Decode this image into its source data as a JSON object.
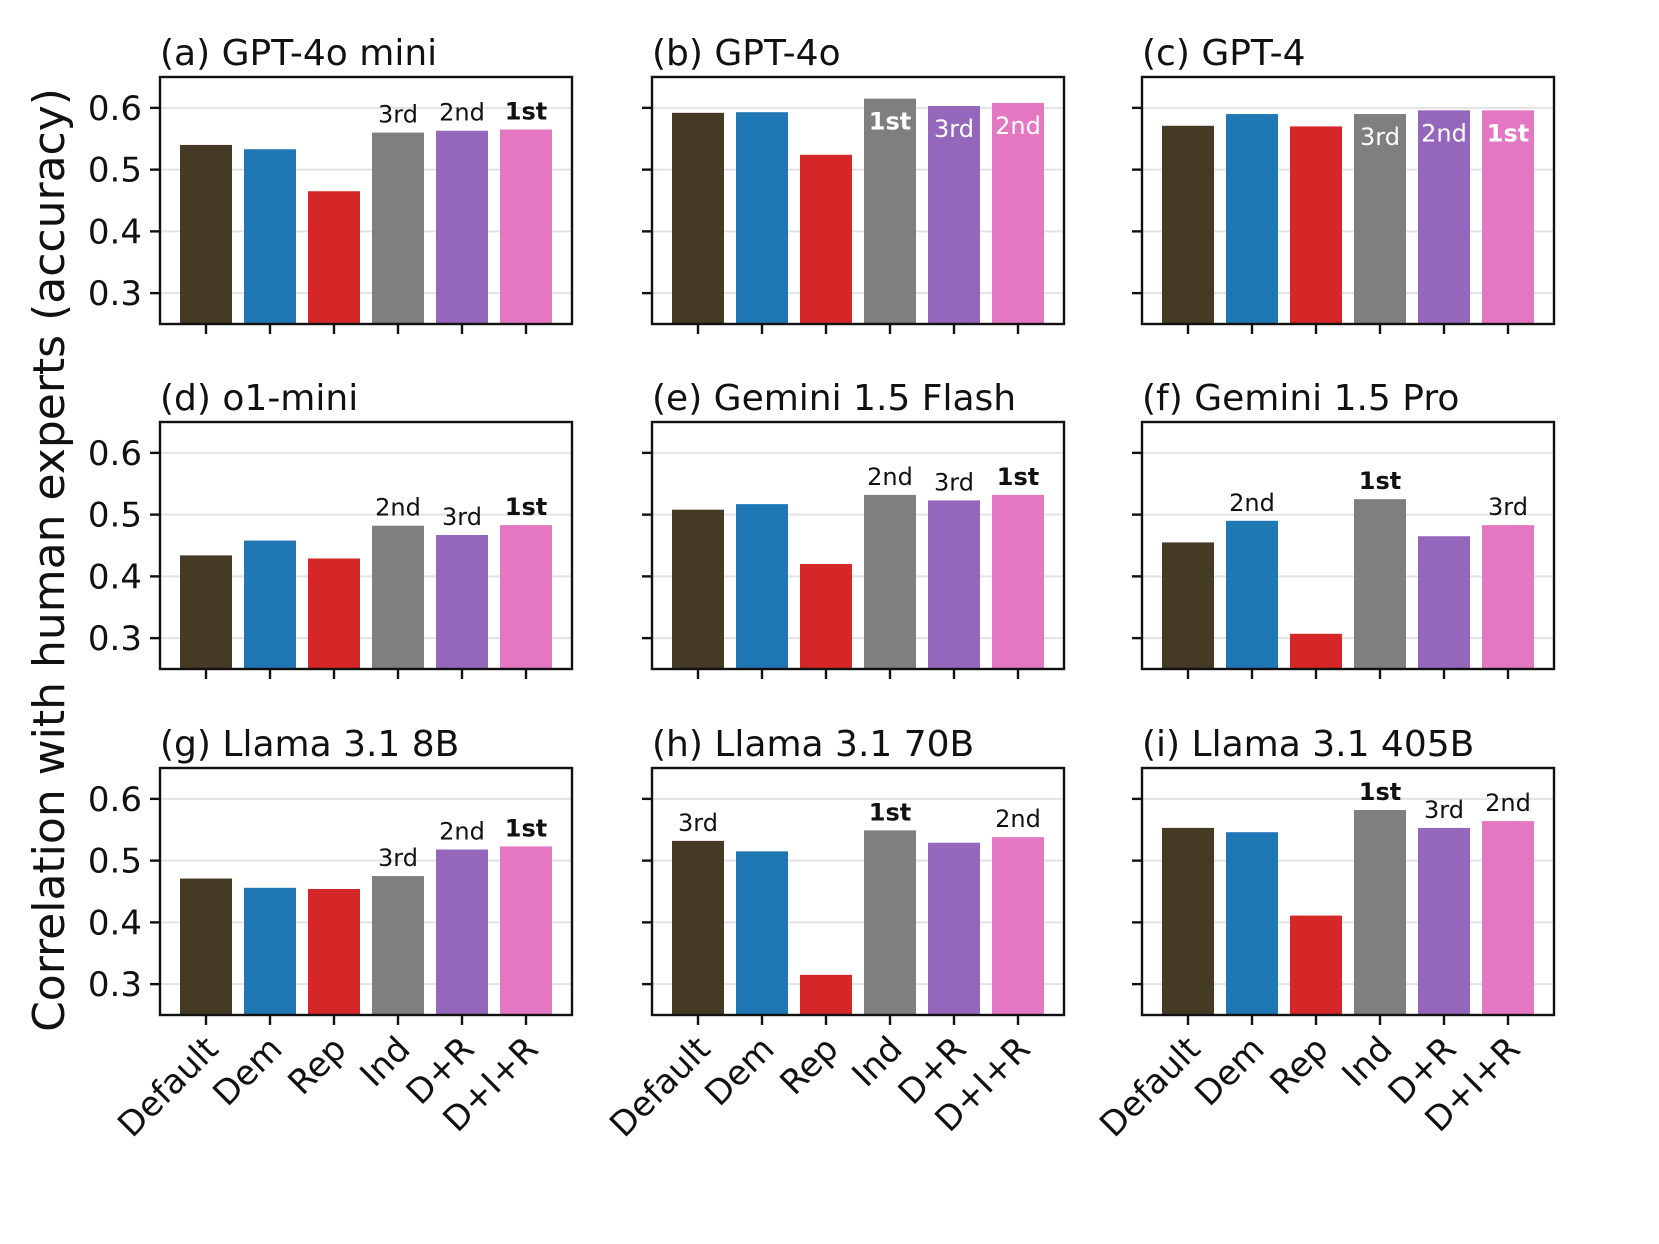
{
  "chart_data": {
    "type": "bar",
    "ylabel": "Correlation with human experts (accuracy)",
    "categories": [
      "Default",
      "Dem",
      "Rep",
      "Ind",
      "D+R",
      "D+I+R"
    ],
    "colors": [
      "#453b24",
      "#1f77b4",
      "#d62728",
      "#7f7f7f",
      "#9467bd",
      "#e377c2"
    ],
    "ylim": [
      0.25,
      0.65
    ],
    "yticks": [
      0.3,
      0.4,
      0.5,
      0.6
    ],
    "ytick_labels": [
      "0.3",
      "0.4",
      "0.5",
      "0.6"
    ],
    "grid": "horizontal",
    "panels": [
      {
        "title": "(a) GPT-4o mini",
        "values": [
          0.54,
          0.533,
          0.465,
          0.56,
          0.563,
          0.565
        ],
        "annotations": [
          null,
          null,
          null,
          "3rd",
          "2nd",
          "1st"
        ],
        "label_inside": false
      },
      {
        "title": "(b) GPT-4o",
        "values": [
          0.592,
          0.593,
          0.524,
          0.615,
          0.603,
          0.608
        ],
        "annotations": [
          null,
          null,
          null,
          "1st",
          "3rd",
          "2nd"
        ],
        "label_inside": true
      },
      {
        "title": "(c) GPT-4",
        "values": [
          0.571,
          0.59,
          0.57,
          0.59,
          0.596,
          0.596
        ],
        "annotations": [
          null,
          null,
          null,
          "3rd",
          "2nd",
          "1st"
        ],
        "label_inside": true
      },
      {
        "title": "(d) o1-mini",
        "values": [
          0.434,
          0.458,
          0.429,
          0.482,
          0.467,
          0.483
        ],
        "annotations": [
          null,
          null,
          null,
          "2nd",
          "3rd",
          "1st"
        ],
        "label_inside": false
      },
      {
        "title": "(e) Gemini 1.5 Flash",
        "values": [
          0.508,
          0.517,
          0.42,
          0.532,
          0.523,
          0.532
        ],
        "annotations": [
          null,
          null,
          null,
          "2nd",
          "3rd",
          "1st"
        ],
        "label_inside": false
      },
      {
        "title": "(f) Gemini 1.5 Pro",
        "values": [
          0.455,
          0.49,
          0.307,
          0.525,
          0.465,
          0.483
        ],
        "annotations": [
          null,
          "2nd",
          null,
          "1st",
          null,
          "3rd"
        ],
        "label_inside": false
      },
      {
        "title": "(g) Llama 3.1 8B",
        "values": [
          0.471,
          0.456,
          0.454,
          0.475,
          0.518,
          0.523
        ],
        "annotations": [
          null,
          null,
          null,
          "3rd",
          "2nd",
          "1st"
        ],
        "label_inside": false
      },
      {
        "title": "(h) Llama 3.1 70B",
        "values": [
          0.532,
          0.515,
          0.315,
          0.549,
          0.529,
          0.538
        ],
        "annotations": [
          "3rd",
          null,
          null,
          "1st",
          null,
          "2nd"
        ],
        "label_inside": false
      },
      {
        "title": "(i) Llama 3.1 405B",
        "values": [
          0.553,
          0.546,
          0.411,
          0.582,
          0.553,
          0.564
        ],
        "annotations": [
          null,
          null,
          null,
          "1st",
          "3rd",
          "2nd"
        ],
        "label_inside": false
      }
    ]
  }
}
